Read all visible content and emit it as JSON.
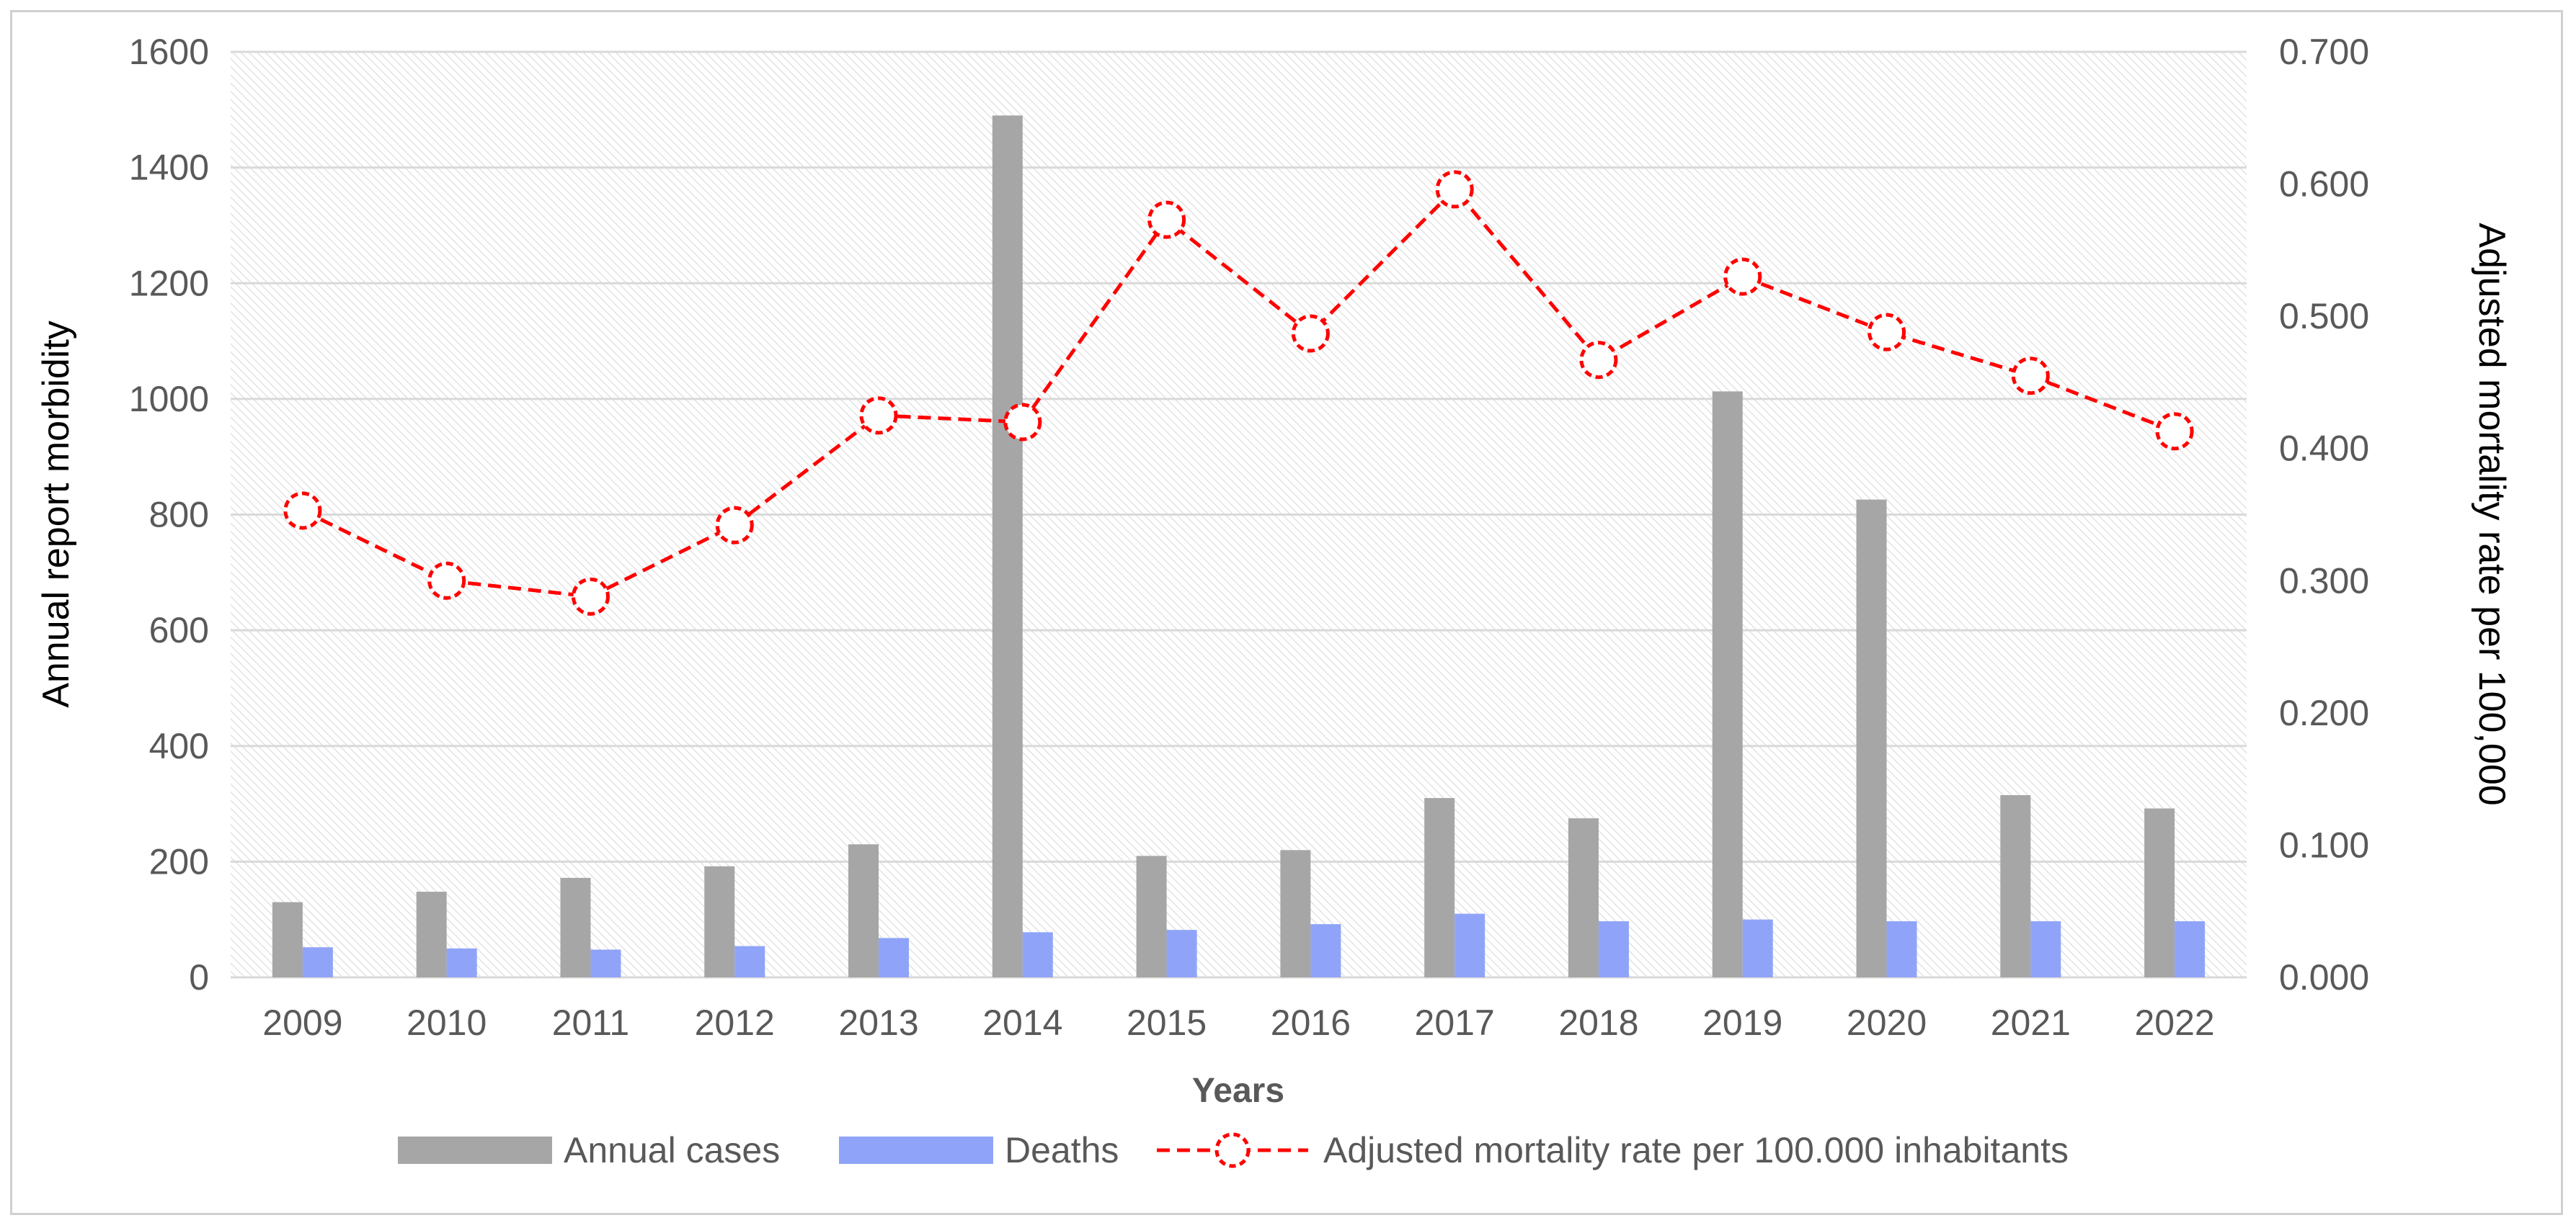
{
  "chart_data": {
    "type": "bar+line",
    "categories": [
      "2009",
      "2010",
      "2011",
      "2012",
      "2013",
      "2014",
      "2015",
      "2016",
      "2017",
      "2018",
      "2019",
      "2020",
      "2021",
      "2022"
    ],
    "xlabel": "Years",
    "ylabel_left": "Annual report morbidity",
    "ylabel_right": "Adjusted mortality rate per 100,000",
    "ylim_left": [
      0,
      1600
    ],
    "yticks_left": [
      "0",
      "200",
      "400",
      "600",
      "800",
      "1000",
      "1200",
      "1400",
      "1600"
    ],
    "ylim_right": [
      0,
      0.7
    ],
    "yticks_right": [
      "0.000",
      "0.100",
      "0.200",
      "0.300",
      "0.400",
      "0.500",
      "0.600",
      "0.700"
    ],
    "grid": true,
    "legend_position": "bottom",
    "series": [
      {
        "name": "Annual cases",
        "kind": "bar",
        "axis": "left",
        "color": "#a6a6a6",
        "values": [
          130,
          148,
          172,
          192,
          230,
          1490,
          210,
          220,
          310,
          275,
          1013,
          826,
          315,
          292
        ]
      },
      {
        "name": "Deaths",
        "kind": "bar",
        "axis": "left",
        "color": "#8fa4f8",
        "values": [
          52,
          50,
          48,
          54,
          68,
          78,
          82,
          92,
          110,
          97,
          100,
          97,
          97,
          97
        ]
      },
      {
        "name": "Adjusted mortality rate per 100.000 inhabitants",
        "kind": "line",
        "axis": "right",
        "color": "#ff0000",
        "style": "dashed",
        "marker": "open-circle",
        "values": [
          0.353,
          0.3,
          0.288,
          0.342,
          0.425,
          0.42,
          0.573,
          0.487,
          0.596,
          0.467,
          0.53,
          0.488,
          0.455,
          0.413
        ]
      }
    ]
  }
}
